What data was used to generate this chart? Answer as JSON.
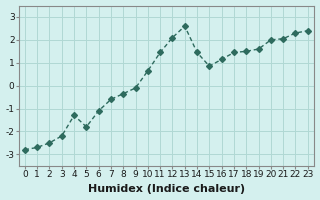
{
  "xlabel": "Humidex (Indice chaleur)",
  "ylabel": "",
  "x": [
    0,
    1,
    2,
    3,
    4,
    5,
    6,
    7,
    8,
    9,
    10,
    11,
    12,
    13,
    14,
    15,
    16,
    17,
    18,
    19,
    20,
    21,
    22,
    23
  ],
  "y": [
    -2.8,
    -2.7,
    -2.5,
    -2.2,
    -1.3,
    -1.8,
    -1.1,
    -0.6,
    -0.35,
    -0.1,
    0.65,
    1.45,
    2.1,
    2.6,
    1.45,
    0.85,
    1.15,
    1.45,
    1.5,
    1.6,
    2.0,
    2.05,
    2.3,
    2.4
  ],
  "line_color": "#2e6b5e",
  "marker": "D",
  "marker_size": 3,
  "bg_color": "#d4f0ee",
  "grid_color": "#b0d8d4",
  "ylim": [
    -3.5,
    3.5
  ],
  "xlim": [
    -0.5,
    23.5
  ],
  "yticks": [
    -3,
    -2,
    -1,
    0,
    1,
    2,
    3
  ],
  "xticks": [
    0,
    1,
    2,
    3,
    4,
    5,
    6,
    7,
    8,
    9,
    10,
    11,
    12,
    13,
    14,
    15,
    16,
    17,
    18,
    19,
    20,
    21,
    22,
    23
  ],
  "tick_fontsize": 6.5,
  "xlabel_fontsize": 8,
  "title_fontsize": 7
}
